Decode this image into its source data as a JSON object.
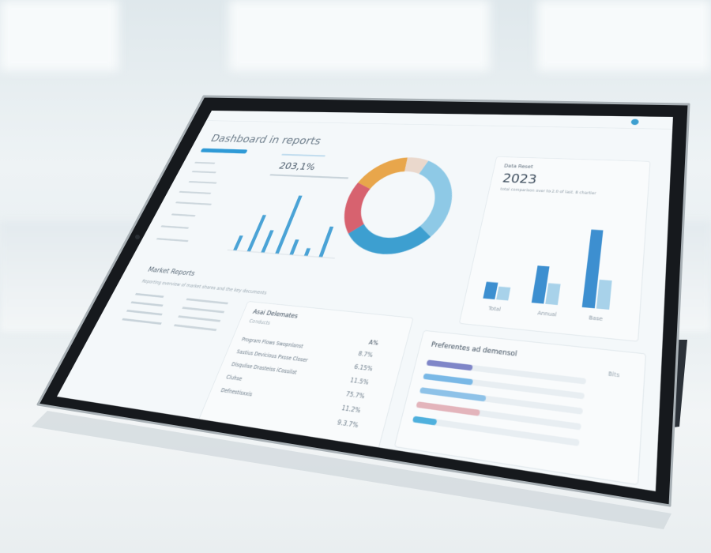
{
  "dashboard": {
    "title": "Dashboard in reports",
    "kpi_left": {
      "value": "203,1%"
    },
    "kpi_right": {
      "label": "Data Reset",
      "value": "2023",
      "caption": "total comparison over to 2.0 of last. 8 chartier"
    },
    "donut": {
      "segments": [
        {
          "value": 30,
          "color": "#8ec9e6"
        },
        {
          "value": 28,
          "color": "#3d9fd0"
        },
        {
          "value": 18,
          "color": "#d7626f"
        },
        {
          "value": 17,
          "color": "#e8a64b"
        },
        {
          "value": 7,
          "color": "#ead8cc"
        }
      ]
    },
    "left_bars": {
      "values": [
        2,
        5,
        3,
        8,
        2,
        1,
        4
      ],
      "color": "#4aa3d6"
    },
    "right_bars": {
      "labels": [
        "Total",
        "Annual",
        "Base"
      ],
      "groups": [
        [
          18,
          14
        ],
        [
          40,
          22
        ],
        [
          85,
          30
        ]
      ],
      "colors": [
        "#3d8fd0",
        "#a8d2ea"
      ]
    },
    "market": {
      "title": "Market Reports",
      "text": "Reporting overview of market shares and the key documents"
    },
    "table": {
      "title": "Asai Delemates",
      "subtitle": "Conducts",
      "column": "A%",
      "rows": [
        {
          "label": "Program Flows Swopnlanst",
          "value": "8.7%"
        },
        {
          "label": "Sastius Devicious Pxsse Closer",
          "value": "6.15%"
        },
        {
          "label": "Disqulise Drasteiss iCossilat",
          "value": "11.5%"
        },
        {
          "label": "Cluhse",
          "value": "75.7%"
        },
        {
          "label": "Defnestisxxis",
          "value": "11.2%"
        },
        {
          "label": "",
          "value": "9.3.7%"
        }
      ]
    },
    "performance": {
      "title": "Preferentes ad demensol",
      "tag": "Bits",
      "bars": [
        {
          "value": 0.3,
          "color": "#7f86c8"
        },
        {
          "value": 0.32,
          "color": "#79b8e6"
        },
        {
          "value": 0.42,
          "color": "#8ec2e8"
        },
        {
          "value": 0.4,
          "color": "#e3b4bb"
        },
        {
          "value": 0.15,
          "color": "#4fb0dd"
        }
      ]
    }
  }
}
